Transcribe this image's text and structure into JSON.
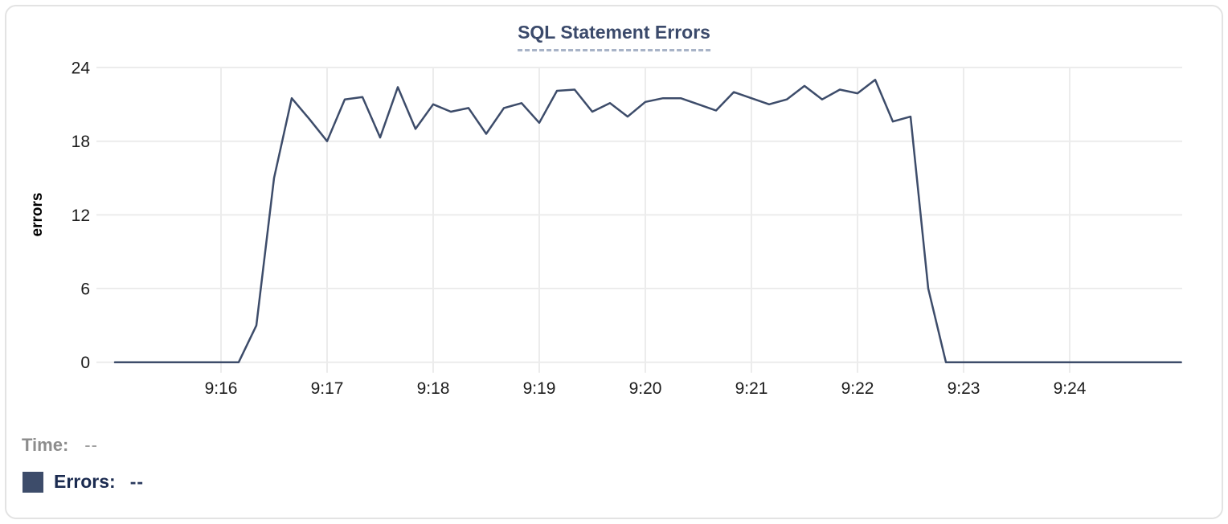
{
  "chart_data": {
    "type": "line",
    "title": "SQL Statement Errors",
    "xlabel": "",
    "ylabel": "errors",
    "ylim": [
      0,
      24
    ],
    "y_ticks": [
      0,
      6,
      12,
      18,
      24
    ],
    "x_ticks": [
      "9:16",
      "9:17",
      "9:18",
      "9:19",
      "9:20",
      "9:21",
      "9:22",
      "9:23",
      "9:24"
    ],
    "x_domain": [
      "9:14:53",
      "9:25:03"
    ],
    "grid": true,
    "legend_position": "bottom-left",
    "colors": {
      "line": "#3d4c6a",
      "grid": "#ececec",
      "tick_text": "#1c1c1c",
      "title": "#3b4a6b"
    },
    "series": [
      {
        "name": "Errors",
        "color": "#3d4c6a",
        "points": [
          [
            "9:15:00",
            0
          ],
          [
            "9:15:10",
            0
          ],
          [
            "9:15:20",
            0
          ],
          [
            "9:15:30",
            0
          ],
          [
            "9:15:40",
            0
          ],
          [
            "9:15:50",
            0
          ],
          [
            "9:16:00",
            0
          ],
          [
            "9:16:10",
            0
          ],
          [
            "9:16:20",
            3
          ],
          [
            "9:16:30",
            15
          ],
          [
            "9:16:40",
            21.5
          ],
          [
            "9:16:50",
            19.8
          ],
          [
            "9:17:00",
            18
          ],
          [
            "9:17:10",
            21.4
          ],
          [
            "9:17:20",
            21.6
          ],
          [
            "9:17:30",
            18.3
          ],
          [
            "9:17:40",
            22.4
          ],
          [
            "9:17:50",
            19
          ],
          [
            "9:18:00",
            21
          ],
          [
            "9:18:10",
            20.4
          ],
          [
            "9:18:20",
            20.7
          ],
          [
            "9:18:30",
            18.6
          ],
          [
            "9:18:40",
            20.7
          ],
          [
            "9:18:50",
            21.1
          ],
          [
            "9:19:00",
            19.5
          ],
          [
            "9:19:10",
            22.1
          ],
          [
            "9:19:20",
            22.2
          ],
          [
            "9:19:30",
            20.4
          ],
          [
            "9:19:40",
            21.1
          ],
          [
            "9:19:50",
            20
          ],
          [
            "9:20:00",
            21.2
          ],
          [
            "9:20:10",
            21.5
          ],
          [
            "9:20:20",
            21.5
          ],
          [
            "9:20:30",
            21
          ],
          [
            "9:20:40",
            20.5
          ],
          [
            "9:20:50",
            22
          ],
          [
            "9:21:00",
            21.5
          ],
          [
            "9:21:10",
            21
          ],
          [
            "9:21:20",
            21.4
          ],
          [
            "9:21:30",
            22.5
          ],
          [
            "9:21:40",
            21.4
          ],
          [
            "9:21:50",
            22.2
          ],
          [
            "9:22:00",
            21.9
          ],
          [
            "9:22:10",
            23
          ],
          [
            "9:22:20",
            19.6
          ],
          [
            "9:22:30",
            20
          ],
          [
            "9:22:40",
            6
          ],
          [
            "9:22:50",
            0
          ],
          [
            "9:23:00",
            0
          ],
          [
            "9:23:10",
            0
          ],
          [
            "9:23:20",
            0
          ],
          [
            "9:23:30",
            0
          ],
          [
            "9:23:40",
            0
          ],
          [
            "9:23:50",
            0
          ],
          [
            "9:24:00",
            0
          ],
          [
            "9:24:10",
            0
          ],
          [
            "9:24:20",
            0
          ],
          [
            "9:24:30",
            0
          ],
          [
            "9:24:40",
            0
          ],
          [
            "9:24:50",
            0
          ],
          [
            "9:25:00",
            0
          ],
          [
            "9:25:03",
            0
          ]
        ]
      }
    ]
  },
  "readout": {
    "time_label": "Time:",
    "time_value": "--",
    "errors_label": "Errors:",
    "errors_value": "--"
  }
}
